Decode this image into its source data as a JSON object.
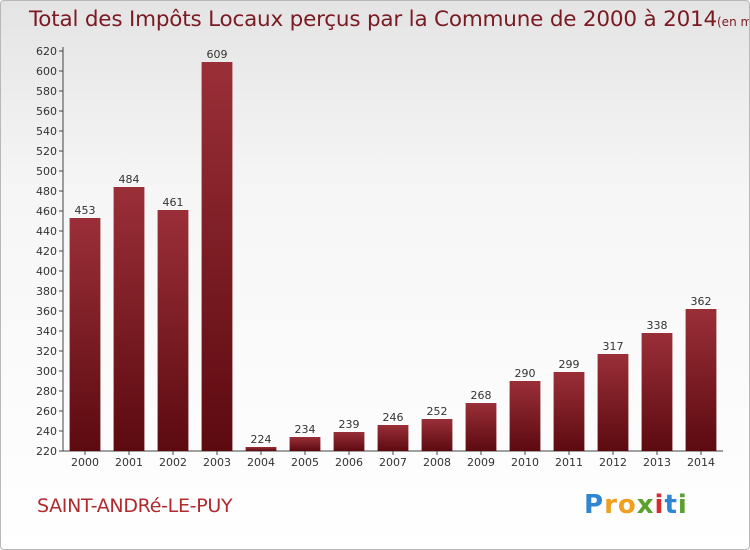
{
  "title": "Total des Impôts Locaux perçus par la Commune de 2000 à 2014",
  "title_unit": "(en milliers d'€)",
  "commune": "SAINT-ANDRé-LE-PUY",
  "logo": {
    "letters": [
      "P",
      "r",
      "o",
      "x",
      "i",
      "t",
      "i"
    ],
    "colors": [
      "#2e86d1",
      "#f0a020",
      "#f0a020",
      "#5aa02c",
      "#d62b2b",
      "#2e86d1",
      "#5aa02c"
    ]
  },
  "colors": {
    "bar_top": "#9a2f38",
    "bar_bottom": "#5c0a10",
    "title": "#7a1a22",
    "commune": "#b02a2e"
  },
  "chart_data": {
    "type": "bar",
    "title": "Total des Impôts Locaux perçus par la Commune de 2000 à 2014",
    "categories": [
      "2000",
      "2001",
      "2002",
      "2003",
      "2004",
      "2005",
      "2006",
      "2007",
      "2008",
      "2009",
      "2010",
      "2011",
      "2012",
      "2013",
      "2014"
    ],
    "values": [
      453,
      484,
      461,
      609,
      224,
      234,
      239,
      246,
      252,
      268,
      290,
      299,
      317,
      338,
      362
    ],
    "ylim": [
      220,
      620
    ],
    "ytick_step": 20,
    "grid": false,
    "xlabel": "",
    "ylabel": ""
  }
}
